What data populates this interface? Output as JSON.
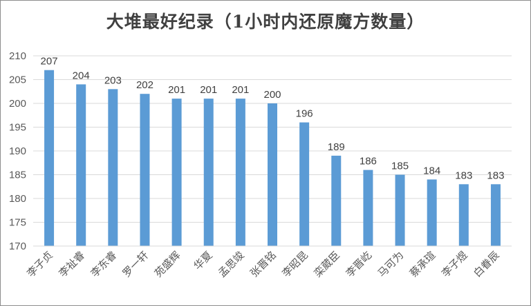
{
  "chart_data": {
    "type": "bar",
    "title": "大堆最好纪录（1小时内还原魔方数量）",
    "categories": [
      "李子贞",
      "李祉睿",
      "李东睿",
      "罗一轩",
      "苑盛辉",
      "华夏",
      "孟思竣",
      "张晋铭",
      "李昭昆",
      "栾葳臣",
      "李晋屹",
      "马可为",
      "蔡承瑄",
      "李子煜",
      "白眷辰"
    ],
    "values": [
      207,
      204,
      203,
      202,
      201,
      201,
      201,
      200,
      196,
      189,
      186,
      185,
      184,
      183,
      183
    ],
    "ylim": [
      170,
      210
    ],
    "yticks": [
      170,
      175,
      180,
      185,
      190,
      195,
      200,
      205,
      210
    ],
    "xlabel": "",
    "ylabel": "",
    "grid": true,
    "bar_color": "#5b9bd5",
    "grid_color": "#d9d9d9"
  }
}
